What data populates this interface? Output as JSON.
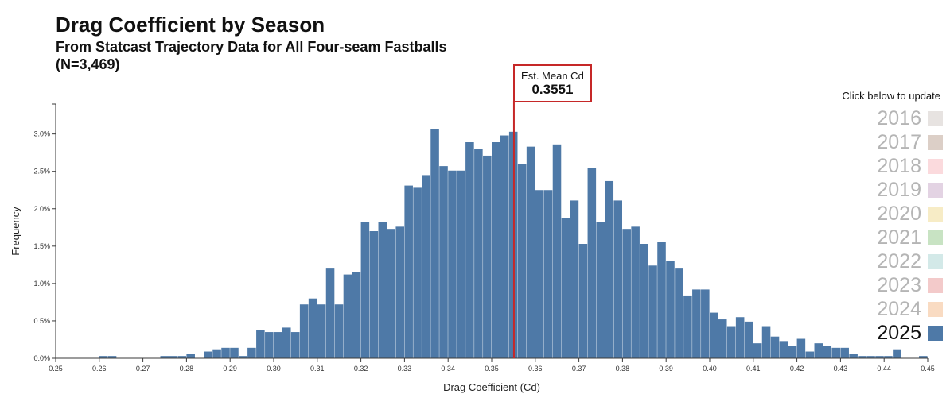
{
  "chart_data": {
    "type": "bar",
    "title": "Drag Coefficient by Season",
    "subtitle": "From Statcast Trajectory Data for All Four-seam Fastballs",
    "sample_size": "(N=3,469)",
    "xlabel": "Drag Coefficient (Cd)",
    "ylabel": "Frequency",
    "xlim": [
      0.25,
      0.45
    ],
    "ylim": [
      0,
      0.034
    ],
    "bin_width": 0.002,
    "x_ticks": [
      "0.25",
      "0.26",
      "0.27",
      "0.28",
      "0.29",
      "0.30",
      "0.31",
      "0.32",
      "0.33",
      "0.34",
      "0.35",
      "0.36",
      "0.37",
      "0.38",
      "0.39",
      "0.40",
      "0.41",
      "0.42",
      "0.43",
      "0.44",
      "0.45"
    ],
    "y_ticks": [
      "0.0%",
      "0.5%",
      "1.0%",
      "1.5%",
      "2.0%",
      "2.5%",
      "3.0%"
    ],
    "y_tick_values": [
      0,
      0.005,
      0.01,
      0.015,
      0.02,
      0.025,
      0.03
    ],
    "series": [
      {
        "name": "2025",
        "color": "#4e79a7",
        "bins": [
          {
            "x": 0.26,
            "y": 0.0003
          },
          {
            "x": 0.262,
            "y": 0.0003
          },
          {
            "x": 0.274,
            "y": 0.0003
          },
          {
            "x": 0.276,
            "y": 0.0003
          },
          {
            "x": 0.278,
            "y": 0.0003
          },
          {
            "x": 0.28,
            "y": 0.0006
          },
          {
            "x": 0.284,
            "y": 0.0009
          },
          {
            "x": 0.286,
            "y": 0.0012
          },
          {
            "x": 0.288,
            "y": 0.0014
          },
          {
            "x": 0.29,
            "y": 0.0014
          },
          {
            "x": 0.292,
            "y": 0.0003
          },
          {
            "x": 0.294,
            "y": 0.0014
          },
          {
            "x": 0.296,
            "y": 0.0038
          },
          {
            "x": 0.298,
            "y": 0.0035
          },
          {
            "x": 0.3,
            "y": 0.0035
          },
          {
            "x": 0.302,
            "y": 0.0041
          },
          {
            "x": 0.304,
            "y": 0.0035
          },
          {
            "x": 0.306,
            "y": 0.0072
          },
          {
            "x": 0.308,
            "y": 0.008
          },
          {
            "x": 0.31,
            "y": 0.0072
          },
          {
            "x": 0.312,
            "y": 0.0121
          },
          {
            "x": 0.314,
            "y": 0.0072
          },
          {
            "x": 0.316,
            "y": 0.0112
          },
          {
            "x": 0.318,
            "y": 0.0115
          },
          {
            "x": 0.32,
            "y": 0.0182
          },
          {
            "x": 0.322,
            "y": 0.017
          },
          {
            "x": 0.324,
            "y": 0.0182
          },
          {
            "x": 0.326,
            "y": 0.0173
          },
          {
            "x": 0.328,
            "y": 0.0176
          },
          {
            "x": 0.33,
            "y": 0.0231
          },
          {
            "x": 0.332,
            "y": 0.0228
          },
          {
            "x": 0.334,
            "y": 0.0245
          },
          {
            "x": 0.336,
            "y": 0.0306
          },
          {
            "x": 0.338,
            "y": 0.0257
          },
          {
            "x": 0.34,
            "y": 0.0251
          },
          {
            "x": 0.342,
            "y": 0.0251
          },
          {
            "x": 0.344,
            "y": 0.0289
          },
          {
            "x": 0.346,
            "y": 0.028
          },
          {
            "x": 0.348,
            "y": 0.0271
          },
          {
            "x": 0.35,
            "y": 0.0289
          },
          {
            "x": 0.352,
            "y": 0.0298
          },
          {
            "x": 0.354,
            "y": 0.0303
          },
          {
            "x": 0.356,
            "y": 0.026
          },
          {
            "x": 0.358,
            "y": 0.0283
          },
          {
            "x": 0.36,
            "y": 0.0225
          },
          {
            "x": 0.362,
            "y": 0.0225
          },
          {
            "x": 0.364,
            "y": 0.0286
          },
          {
            "x": 0.366,
            "y": 0.0188
          },
          {
            "x": 0.368,
            "y": 0.0211
          },
          {
            "x": 0.37,
            "y": 0.0153
          },
          {
            "x": 0.372,
            "y": 0.0254
          },
          {
            "x": 0.374,
            "y": 0.0182
          },
          {
            "x": 0.376,
            "y": 0.0237
          },
          {
            "x": 0.378,
            "y": 0.0211
          },
          {
            "x": 0.38,
            "y": 0.0173
          },
          {
            "x": 0.382,
            "y": 0.0176
          },
          {
            "x": 0.384,
            "y": 0.0153
          },
          {
            "x": 0.386,
            "y": 0.0124
          },
          {
            "x": 0.388,
            "y": 0.0156
          },
          {
            "x": 0.39,
            "y": 0.013
          },
          {
            "x": 0.392,
            "y": 0.0121
          },
          {
            "x": 0.394,
            "y": 0.0084
          },
          {
            "x": 0.396,
            "y": 0.0092
          },
          {
            "x": 0.398,
            "y": 0.0092
          },
          {
            "x": 0.4,
            "y": 0.0061
          },
          {
            "x": 0.402,
            "y": 0.0052
          },
          {
            "x": 0.404,
            "y": 0.0043
          },
          {
            "x": 0.406,
            "y": 0.0055
          },
          {
            "x": 0.408,
            "y": 0.0049
          },
          {
            "x": 0.41,
            "y": 0.002
          },
          {
            "x": 0.412,
            "y": 0.0043
          },
          {
            "x": 0.414,
            "y": 0.0029
          },
          {
            "x": 0.416,
            "y": 0.0023
          },
          {
            "x": 0.418,
            "y": 0.0017
          },
          {
            "x": 0.42,
            "y": 0.0026
          },
          {
            "x": 0.422,
            "y": 0.0009
          },
          {
            "x": 0.424,
            "y": 0.002
          },
          {
            "x": 0.426,
            "y": 0.0017
          },
          {
            "x": 0.428,
            "y": 0.0014
          },
          {
            "x": 0.43,
            "y": 0.0014
          },
          {
            "x": 0.432,
            "y": 0.0006
          },
          {
            "x": 0.434,
            "y": 0.0003
          },
          {
            "x": 0.436,
            "y": 0.0003
          },
          {
            "x": 0.438,
            "y": 0.0003
          },
          {
            "x": 0.44,
            "y": 0.0003
          },
          {
            "x": 0.442,
            "y": 0.0012
          },
          {
            "x": 0.448,
            "y": 0.0003
          }
        ]
      }
    ],
    "mean_line": {
      "label": "Est. Mean Cd",
      "value": 0.3551,
      "display": "0.3551",
      "color": "#c62828"
    }
  },
  "legend": {
    "prompt": "Click below to update",
    "selected": "2025",
    "items": [
      {
        "label": "2016",
        "color": "#e7e3e1"
      },
      {
        "label": "2017",
        "color": "#dccfc7"
      },
      {
        "label": "2018",
        "color": "#fbdadd"
      },
      {
        "label": "2019",
        "color": "#e3d3e3"
      },
      {
        "label": "2020",
        "color": "#f7ecc6"
      },
      {
        "label": "2021",
        "color": "#c8e3c3"
      },
      {
        "label": "2022",
        "color": "#d3e9e8"
      },
      {
        "label": "2023",
        "color": "#f3caca"
      },
      {
        "label": "2024",
        "color": "#f9dbc2"
      },
      {
        "label": "2025",
        "color": "#4e79a7"
      }
    ]
  }
}
